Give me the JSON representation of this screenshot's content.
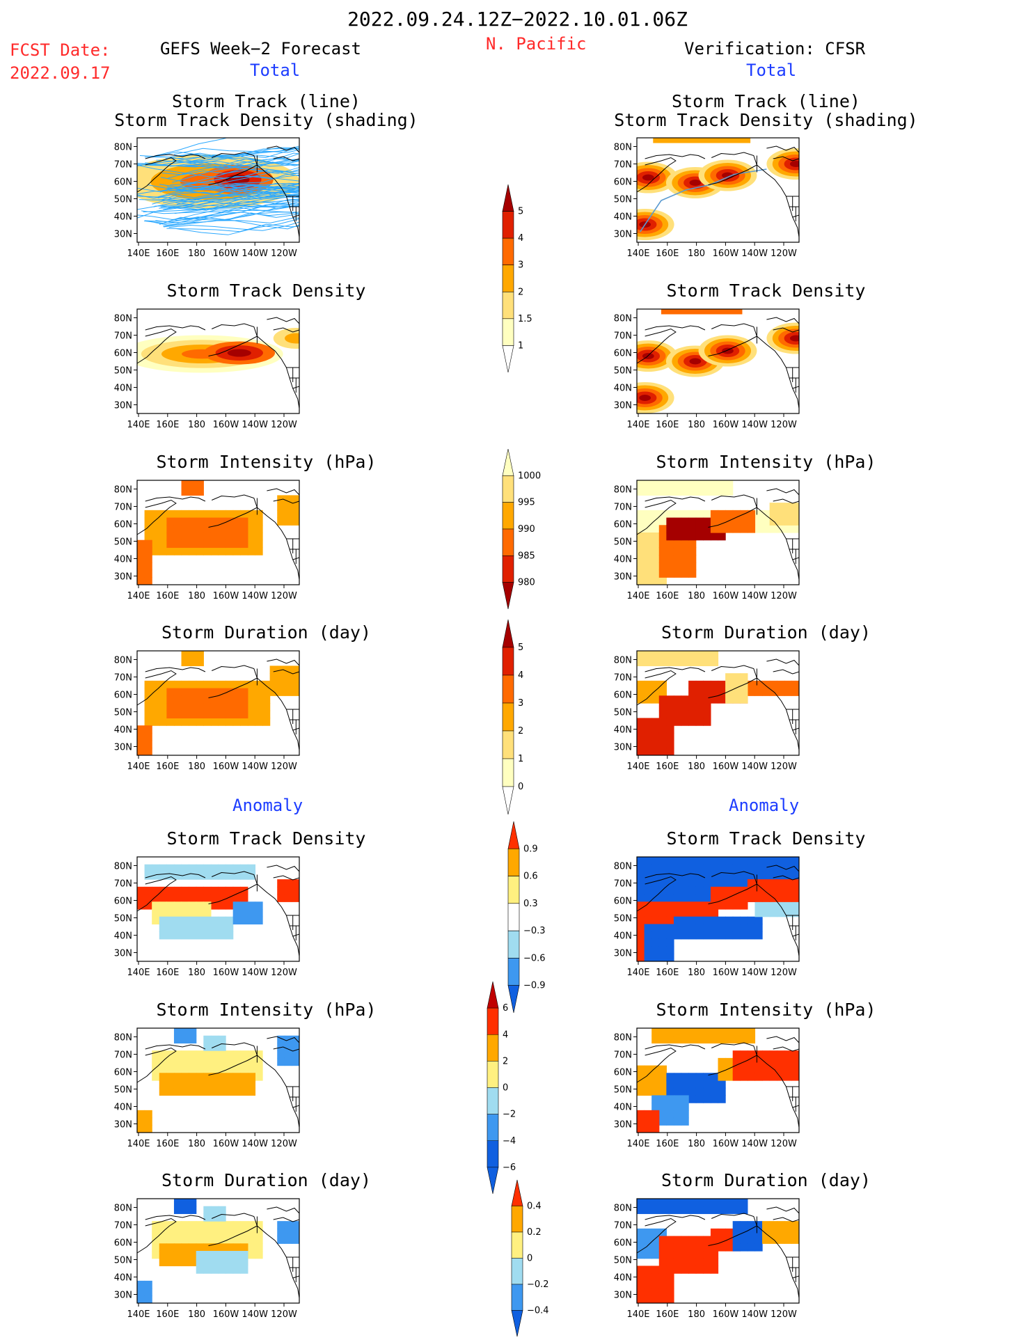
{
  "header": {
    "date_range": "2022.09.24.12Z−2022.10.01.06Z",
    "region": "N. Pacific",
    "fcst_label": "FCST Date:",
    "fcst_date": "2022.09.17",
    "left_title": "GEFS Week−2 Forecast",
    "right_title": "Verification: CFSR"
  },
  "sections": {
    "total_label": "Total",
    "anomaly_label": "Anomaly"
  },
  "panel_titles": {
    "track_line": "Storm Track (line)",
    "track_density_shading": "Storm Track Density (shading)",
    "track_density": "Storm Track Density",
    "intensity": "Storm Intensity (hPa)",
    "duration": "Storm Duration (day)"
  },
  "axes": {
    "lat_ticks": [
      "80N",
      "70N",
      "60N",
      "50N",
      "40N",
      "30N"
    ],
    "lon_ticks": [
      "140E",
      "160E",
      "180",
      "160W",
      "140W",
      "120W"
    ]
  },
  "colors": {
    "track_line": "#2aa8ff",
    "obs_track_line": "#5a9ad0",
    "seq_scale": [
      "#ffffc0",
      "#ffe07a",
      "#ffa800",
      "#ff6a00",
      "#e02000",
      "#a50000"
    ],
    "div_scale": [
      "#1060e0",
      "#3e98f0",
      "#a0dcf0",
      "#ffffff",
      "#fff080",
      "#ffa800",
      "#ff3000"
    ]
  },
  "chart_data": [
    {
      "type": "heatmap",
      "panel": "forecast-track",
      "title": "Storm Track (line) / Storm Track Density (shading)",
      "xlabel": "",
      "ylabel": "",
      "colorbar": "density"
    },
    {
      "type": "heatmap",
      "panel": "observed-track",
      "title": "Storm Track (line) / Storm Track Density (shading)",
      "xlabel": "",
      "ylabel": "",
      "colorbar": "density"
    },
    {
      "type": "heatmap",
      "panel": "forecast-density",
      "title": "Storm Track Density",
      "colorbar": "density"
    },
    {
      "type": "heatmap",
      "panel": "observed-density",
      "title": "Storm Track Density",
      "colorbar": "density"
    },
    {
      "type": "heatmap",
      "panel": "forecast-intensity",
      "title": "Storm Intensity (hPa)",
      "colorbar": "intensity"
    },
    {
      "type": "heatmap",
      "panel": "observed-intensity",
      "title": "Storm Intensity (hPa)",
      "colorbar": "intensity"
    },
    {
      "type": "heatmap",
      "panel": "forecast-duration",
      "title": "Storm Duration (day)",
      "colorbar": "duration"
    },
    {
      "type": "heatmap",
      "panel": "observed-duration",
      "title": "Storm Duration (day)",
      "colorbar": "duration"
    },
    {
      "type": "heatmap",
      "panel": "forecast-density-anom",
      "title": "Storm Track Density",
      "colorbar": "density_anom"
    },
    {
      "type": "heatmap",
      "panel": "observed-density-anom",
      "title": "Storm Track Density",
      "colorbar": "density_anom"
    },
    {
      "type": "heatmap",
      "panel": "forecast-intensity-anom",
      "title": "Storm Intensity (hPa)",
      "colorbar": "intensity_anom"
    },
    {
      "type": "heatmap",
      "panel": "observed-intensity-anom",
      "title": "Storm Intensity (hPa)",
      "colorbar": "intensity_anom"
    },
    {
      "type": "heatmap",
      "panel": "forecast-duration-anom",
      "title": "Storm Duration (day)",
      "colorbar": "duration_anom"
    },
    {
      "type": "heatmap",
      "panel": "observed-duration-anom",
      "title": "Storm Duration (day)",
      "colorbar": "duration_anom"
    }
  ],
  "colorbars": {
    "density": {
      "labels": [
        "5",
        "4",
        "3",
        "2",
        "1.5",
        "1"
      ]
    },
    "intensity": {
      "labels": [
        "1000",
        "995",
        "990",
        "985",
        "980"
      ]
    },
    "duration": {
      "labels": [
        "5",
        "4",
        "3",
        "2",
        "1",
        "0"
      ]
    },
    "density_anom": {
      "labels": [
        "0.9",
        "0.6",
        "0.3",
        "−0.3",
        "−0.6",
        "−0.9"
      ]
    },
    "intensity_anom": {
      "labels": [
        "6",
        "4",
        "2",
        "0",
        "−2",
        "−4",
        "−6"
      ]
    },
    "duration_anom": {
      "labels": [
        "0.4",
        "0.2",
        "0",
        "−0.2",
        "−0.4"
      ]
    }
  }
}
